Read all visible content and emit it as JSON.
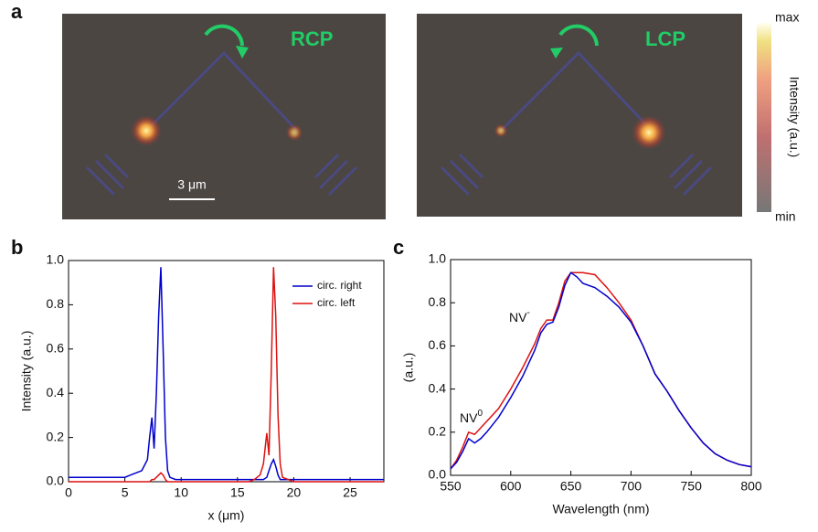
{
  "panel_a": {
    "panel_label": "a",
    "images": [
      {
        "label": "RCP"
      },
      {
        "label": "LCP"
      }
    ],
    "scale_bar": "3 μm",
    "colorbar": {
      "max": "max",
      "label": "Intensity (a.u.)",
      "min": "min"
    }
  },
  "chart_data": [
    {
      "type": "line",
      "panel_label": "b",
      "xlabel": "x (μm)",
      "ylabel": "Intensity (a.u.)",
      "xlim": [
        0,
        28
      ],
      "xticks": [
        0,
        5,
        10,
        15,
        20,
        25
      ],
      "ylim": [
        0,
        1
      ],
      "yticks": [
        {
          "value": 0,
          "label": "0.0"
        },
        0.2,
        0.4,
        0.6,
        0.8,
        {
          "value": 1,
          "label": "1.0"
        }
      ],
      "legend": "upper right",
      "x": [
        0,
        1,
        2,
        3,
        4,
        5,
        5.5,
        6,
        6.5,
        7,
        7.2,
        7.4,
        7.6,
        7.8,
        8,
        8.2,
        8.4,
        8.6,
        8.8,
        9,
        9.5,
        10,
        11,
        12,
        13,
        14,
        15,
        16,
        16.5,
        17,
        17.3,
        17.6,
        17.8,
        18,
        18.2,
        18.4,
        18.6,
        18.8,
        19,
        19.5,
        20,
        21,
        22,
        23,
        24,
        25,
        26,
        27,
        28
      ],
      "series": [
        {
          "name": "circ. right",
          "color": "#0000cc",
          "values": [
            0.02,
            0.02,
            0.02,
            0.02,
            0.02,
            0.02,
            0.03,
            0.04,
            0.05,
            0.1,
            0.2,
            0.29,
            0.15,
            0.4,
            0.75,
            0.97,
            0.6,
            0.2,
            0.05,
            0.02,
            0.01,
            0.01,
            0.01,
            0.01,
            0.01,
            0.01,
            0.01,
            0.01,
            0.01,
            0.01,
            0.01,
            0.02,
            0.05,
            0.08,
            0.1,
            0.07,
            0.03,
            0.01,
            0.01,
            0.01,
            0.01,
            0.01,
            0.01,
            0.01,
            0.01,
            0.01,
            0.01,
            0.01,
            0.01
          ]
        },
        {
          "name": "circ. left",
          "color": "#dd1111",
          "values": [
            0,
            0,
            0,
            0,
            0,
            0,
            0,
            0,
            0,
            0,
            0,
            0.01,
            0.01,
            0.02,
            0.03,
            0.04,
            0.03,
            0.01,
            0,
            0,
            0,
            0,
            0,
            0,
            0,
            0,
            0,
            0,
            0.01,
            0.03,
            0.08,
            0.22,
            0.12,
            0.5,
            0.97,
            0.75,
            0.3,
            0.08,
            0.02,
            0.01,
            0,
            0,
            0,
            0,
            0,
            0,
            0,
            0,
            0
          ]
        }
      ]
    },
    {
      "type": "line",
      "panel_label": "c",
      "xlabel": "Wavelength (nm)",
      "ylabel": "(a.u.)",
      "xlim": [
        550,
        800
      ],
      "xticks": [
        550,
        600,
        650,
        700,
        750,
        800
      ],
      "ylim": [
        0,
        1
      ],
      "yticks": [
        {
          "value": 0,
          "label": "0.0"
        },
        0.2,
        0.4,
        0.6,
        0.8,
        {
          "value": 1,
          "label": "1.0"
        }
      ],
      "annotations": [
        {
          "text": "NV",
          "sup": "0"
        },
        {
          "text": "NV",
          "sup": "-"
        }
      ],
      "x": [
        550,
        555,
        560,
        565,
        570,
        575,
        580,
        590,
        600,
        610,
        620,
        625,
        630,
        635,
        640,
        645,
        650,
        655,
        660,
        670,
        680,
        690,
        700,
        710,
        720,
        730,
        740,
        750,
        760,
        770,
        780,
        790,
        800
      ],
      "series": [
        {
          "color": "#dd1111",
          "values": [
            0.03,
            0.07,
            0.13,
            0.2,
            0.19,
            0.22,
            0.25,
            0.31,
            0.4,
            0.5,
            0.61,
            0.68,
            0.72,
            0.72,
            0.8,
            0.9,
            0.94,
            0.94,
            0.94,
            0.93,
            0.87,
            0.8,
            0.72,
            0.6,
            0.47,
            0.39,
            0.3,
            0.22,
            0.15,
            0.1,
            0.07,
            0.05,
            0.04
          ]
        },
        {
          "color": "#0000cc",
          "values": [
            0.03,
            0.06,
            0.11,
            0.17,
            0.15,
            0.17,
            0.2,
            0.27,
            0.36,
            0.46,
            0.58,
            0.66,
            0.7,
            0.71,
            0.78,
            0.88,
            0.94,
            0.92,
            0.89,
            0.87,
            0.83,
            0.78,
            0.71,
            0.6,
            0.47,
            0.39,
            0.3,
            0.22,
            0.15,
            0.1,
            0.07,
            0.05,
            0.04
          ]
        }
      ]
    }
  ]
}
